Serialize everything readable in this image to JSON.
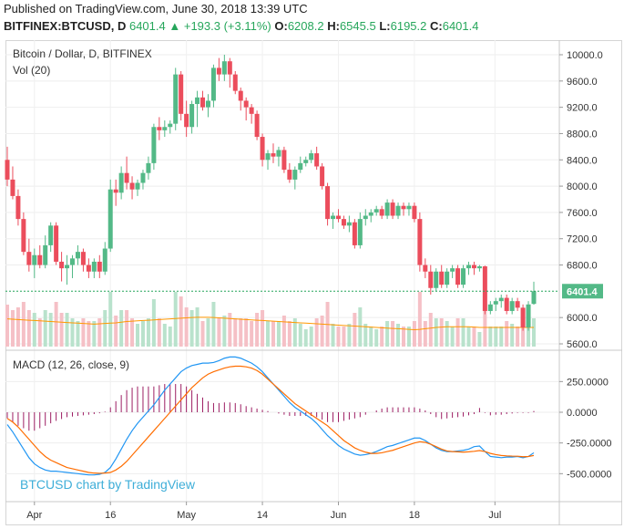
{
  "header": {
    "published": "Published on TradingView.com, June 30, 2018 13:39 UTC",
    "symbol": "BITFINEX:BTCUSD, D",
    "last": "6401.4",
    "change": "+193.3 (+3.11%)",
    "o_label": "O:",
    "o": "6208.2",
    "h_label": "H:",
    "h": "6545.5",
    "l_label": "L:",
    "l": "6195.2",
    "c_label": "C:",
    "c": "6401.4"
  },
  "price_pane": {
    "title": "Bitcoin / Dollar, D, BITFINEX",
    "vol_label": "Vol (20)",
    "last_price_tag": "6401.4",
    "price_ticks": [
      "10000.0",
      "9600.0",
      "9200.0",
      "8800.0",
      "8400.0",
      "8000.0",
      "7600.0",
      "7200.0",
      "6800.0",
      "6000.0",
      "5600.0"
    ],
    "x_ticks": [
      "Apr",
      "16",
      "May",
      "14",
      "Jun",
      "18",
      "Jul"
    ]
  },
  "macd_pane": {
    "title": "MACD (12, 26, close, 9)",
    "ticks": [
      "250.0000",
      "0.0000",
      "-250.0000",
      "-500.0000"
    ]
  },
  "watermark": "BTCUSD chart by TradingView",
  "colors": {
    "up": "#53b987",
    "down": "#eb4d5c",
    "macd": "#2196f3",
    "signal": "#ff6d00",
    "hist": "#9c1d62",
    "ma": "#ff9800"
  },
  "chart_data": [
    {
      "type": "candlestick",
      "title": "Bitcoin / Dollar, D, BITFINEX",
      "ylim": [
        5500,
        10200
      ],
      "x_tick_labels": [
        "Apr",
        "16",
        "May",
        "14",
        "Jun",
        "18",
        "Jul"
      ],
      "candles": [
        [
          8400,
          8600,
          8000,
          8100
        ],
        [
          8100,
          8300,
          7800,
          7850
        ],
        [
          7850,
          7950,
          7400,
          7500
        ],
        [
          7500,
          7600,
          6950,
          7000
        ],
        [
          7000,
          7200,
          6700,
          6800
        ],
        [
          6800,
          7050,
          6600,
          6950
        ],
        [
          6950,
          7100,
          6750,
          6800
        ],
        [
          6800,
          7250,
          6750,
          7100
        ],
        [
          7100,
          7450,
          7000,
          7400
        ],
        [
          7400,
          7450,
          6800,
          6850
        ],
        [
          6850,
          7000,
          6550,
          6750
        ],
        [
          6750,
          6950,
          6500,
          6800
        ],
        [
          6800,
          6950,
          6600,
          6900
        ],
        [
          6900,
          7100,
          6800,
          7000
        ],
        [
          7000,
          7050,
          6700,
          6800
        ],
        [
          6800,
          6900,
          6600,
          6700
        ],
        [
          6700,
          6900,
          6600,
          6850
        ],
        [
          6850,
          6950,
          6600,
          6700
        ],
        [
          6700,
          7150,
          6650,
          7050
        ],
        [
          7050,
          8100,
          7000,
          7950
        ],
        [
          7950,
          8100,
          7700,
          7900
        ],
        [
          7900,
          8300,
          7800,
          8200
        ],
        [
          8200,
          8450,
          7950,
          8050
        ],
        [
          8050,
          8150,
          7800,
          7950
        ],
        [
          7950,
          8100,
          7850,
          8050
        ],
        [
          8050,
          8250,
          7950,
          8200
        ],
        [
          8200,
          8450,
          8100,
          8350
        ],
        [
          8350,
          8950,
          8250,
          8900
        ],
        [
          8900,
          9050,
          8700,
          8850
        ],
        [
          8850,
          9000,
          8750,
          8900
        ],
        [
          8900,
          9000,
          8800,
          8950
        ],
        [
          8950,
          9800,
          8850,
          9700
        ],
        [
          9700,
          9750,
          9000,
          9100
        ],
        [
          9100,
          9300,
          8750,
          8900
        ],
        [
          8900,
          9300,
          8800,
          9250
        ],
        [
          9250,
          9450,
          8900,
          9350
        ],
        [
          9350,
          9450,
          9150,
          9200
        ],
        [
          9200,
          9400,
          9050,
          9300
        ],
        [
          9300,
          9850,
          9200,
          9800
        ],
        [
          9800,
          9950,
          9600,
          9700
        ],
        [
          9700,
          10000,
          9600,
          9900
        ],
        [
          9900,
          9950,
          9500,
          9700
        ],
        [
          9700,
          9750,
          9400,
          9450
        ],
        [
          9450,
          9500,
          9150,
          9300
        ],
        [
          9300,
          9350,
          9000,
          9200
        ],
        [
          9200,
          9250,
          8950,
          9100
        ],
        [
          9100,
          9150,
          8700,
          8750
        ],
        [
          8750,
          8800,
          8300,
          8400
        ],
        [
          8400,
          8550,
          8250,
          8500
        ],
        [
          8500,
          8650,
          8350,
          8450
        ],
        [
          8450,
          8600,
          8300,
          8550
        ],
        [
          8550,
          8600,
          8200,
          8250
        ],
        [
          8250,
          8350,
          8050,
          8100
        ],
        [
          8100,
          8300,
          7950,
          8250
        ],
        [
          8250,
          8450,
          8200,
          8350
        ],
        [
          8350,
          8450,
          8300,
          8400
        ],
        [
          8400,
          8550,
          8350,
          8500
        ],
        [
          8500,
          8600,
          8250,
          8300
        ],
        [
          8300,
          8350,
          7950,
          8000
        ],
        [
          8000,
          8050,
          7400,
          7500
        ],
        [
          7500,
          7600,
          7350,
          7550
        ],
        [
          7550,
          7650,
          7450,
          7500
        ],
        [
          7500,
          7550,
          7350,
          7400
        ],
        [
          7400,
          7550,
          7300,
          7450
        ],
        [
          7450,
          7500,
          7050,
          7100
        ],
        [
          7100,
          7600,
          7050,
          7500
        ],
        [
          7500,
          7650,
          7400,
          7550
        ],
        [
          7550,
          7650,
          7450,
          7600
        ],
        [
          7600,
          7700,
          7550,
          7650
        ],
        [
          7650,
          7700,
          7500,
          7550
        ],
        [
          7550,
          7800,
          7500,
          7750
        ],
        [
          7750,
          7800,
          7500,
          7550
        ],
        [
          7550,
          7750,
          7500,
          7700
        ],
        [
          7700,
          7750,
          7550,
          7650
        ],
        [
          7650,
          7750,
          7550,
          7700
        ],
        [
          7700,
          7750,
          7450,
          7500
        ],
        [
          7500,
          7600,
          6700,
          6800
        ],
        [
          6800,
          6900,
          6600,
          6700
        ],
        [
          6700,
          6800,
          6350,
          6450
        ],
        [
          6450,
          6750,
          6400,
          6700
        ],
        [
          6700,
          6800,
          6450,
          6500
        ],
        [
          6500,
          6750,
          6450,
          6700
        ],
        [
          6700,
          6800,
          6600,
          6750
        ],
        [
          6750,
          6800,
          6450,
          6500
        ],
        [
          6500,
          6800,
          6450,
          6750
        ],
        [
          6750,
          6850,
          6650,
          6800
        ],
        [
          6800,
          6850,
          6650,
          6750
        ],
        [
          6750,
          6800,
          6700,
          6780
        ],
        [
          6780,
          6790,
          6050,
          6100
        ],
        [
          6100,
          6250,
          6050,
          6200
        ],
        [
          6200,
          6300,
          6100,
          6250
        ],
        [
          6250,
          6350,
          6150,
          6300
        ],
        [
          6300,
          6350,
          6050,
          6100
        ],
        [
          6100,
          6300,
          6050,
          6250
        ],
        [
          6250,
          6300,
          6100,
          6150
        ],
        [
          6150,
          6200,
          5800,
          5850
        ],
        [
          5850,
          6250,
          5800,
          6200
        ],
        [
          6208.2,
          6545.5,
          6195.2,
          6401.4
        ]
      ],
      "volume_ma20": [
        5980,
        5975,
        5970,
        5965,
        5960,
        5955,
        5950,
        5945,
        5940,
        5935,
        5930,
        5925,
        5920,
        5915,
        5910,
        5905,
        5900,
        5905,
        5910,
        5915,
        5920,
        5930,
        5940,
        5945,
        5950,
        5955,
        5960,
        5965,
        5970,
        5975,
        5980,
        5985,
        5990,
        5995,
        6000,
        6005,
        6005,
        6005,
        6000,
        5995,
        5990,
        5985,
        5980,
        5975,
        5970,
        5965,
        5960,
        5955,
        5950,
        5945,
        5940,
        5935,
        5930,
        5925,
        5920,
        5915,
        5910,
        5905,
        5900,
        5895,
        5890,
        5885,
        5880,
        5875,
        5870,
        5865,
        5860,
        5855,
        5850,
        5845,
        5840,
        5835,
        5830,
        5825,
        5820,
        5815,
        5820,
        5830,
        5840,
        5850,
        5855,
        5860,
        5860,
        5860,
        5860,
        5860,
        5855,
        5850,
        5850,
        5850,
        5850,
        5850,
        5850,
        5850,
        5850,
        5850,
        5850,
        5850
      ]
    },
    {
      "type": "line",
      "title": "MACD (12, 26, close, 9)",
      "ylim": [
        -650,
        500
      ],
      "series": [
        {
          "name": "MACD",
          "values": [
            -100,
            -160,
            -230,
            -300,
            -370,
            -420,
            -450,
            -470,
            -480,
            -480,
            -485,
            -490,
            -495,
            -500,
            -505,
            -510,
            -510,
            -505,
            -490,
            -450,
            -380,
            -300,
            -220,
            -150,
            -90,
            -40,
            10,
            60,
            120,
            180,
            230,
            280,
            330,
            360,
            380,
            390,
            400,
            400,
            405,
            420,
            440,
            450,
            450,
            440,
            420,
            400,
            370,
            330,
            280,
            230,
            180,
            130,
            80,
            40,
            10,
            -20,
            -50,
            -90,
            -140,
            -190,
            -230,
            -270,
            -300,
            -320,
            -340,
            -350,
            -345,
            -335,
            -320,
            -300,
            -280,
            -270,
            -255,
            -240,
            -225,
            -210,
            -210,
            -230,
            -260,
            -290,
            -310,
            -320,
            -320,
            -315,
            -310,
            -300,
            -280,
            -275,
            -320,
            -360,
            -365,
            -370,
            -365,
            -365,
            -360,
            -370,
            -360,
            -330
          ]
        },
        {
          "name": "Signal",
          "values": [
            -50,
            -80,
            -120,
            -170,
            -220,
            -270,
            -320,
            -360,
            -390,
            -410,
            -430,
            -450,
            -460,
            -470,
            -480,
            -490,
            -495,
            -497,
            -495,
            -490,
            -470,
            -440,
            -400,
            -350,
            -300,
            -250,
            -200,
            -150,
            -100,
            -50,
            0,
            50,
            100,
            150,
            200,
            240,
            280,
            310,
            330,
            345,
            360,
            370,
            375,
            375,
            370,
            360,
            340,
            310,
            270,
            230,
            190,
            150,
            110,
            70,
            40,
            10,
            -20,
            -50,
            -80,
            -110,
            -150,
            -190,
            -230,
            -260,
            -290,
            -310,
            -325,
            -335,
            -335,
            -330,
            -320,
            -310,
            -295,
            -280,
            -265,
            -250,
            -240,
            -245,
            -260,
            -280,
            -300,
            -315,
            -320,
            -322,
            -325,
            -322,
            -318,
            -312,
            -320,
            -335,
            -345,
            -352,
            -355,
            -357,
            -358,
            -362,
            -360,
            -352
          ]
        }
      ],
      "histogram": [
        -50,
        -80,
        -110,
        -130,
        -150,
        -150,
        -130,
        -110,
        -90,
        -70,
        -55,
        -40,
        -35,
        -30,
        -25,
        -20,
        -15,
        -8,
        5,
        40,
        90,
        140,
        180,
        200,
        210,
        210,
        210,
        210,
        220,
        230,
        230,
        230,
        230,
        210,
        180,
        150,
        120,
        90,
        75,
        75,
        80,
        80,
        75,
        65,
        50,
        40,
        30,
        20,
        10,
        0,
        -10,
        -20,
        -30,
        -30,
        -30,
        -30,
        -30,
        -40,
        -60,
        -80,
        -80,
        -80,
        -70,
        -60,
        -50,
        -40,
        -20,
        0,
        15,
        30,
        40,
        40,
        40,
        40,
        40,
        40,
        30,
        15,
        -15,
        -40,
        -55,
        -50,
        -45,
        -40,
        -35,
        -25,
        -15,
        35,
        -5,
        -25,
        -20,
        -20,
        -15,
        -10,
        -5,
        -5,
        -5,
        10
      ]
    }
  ]
}
